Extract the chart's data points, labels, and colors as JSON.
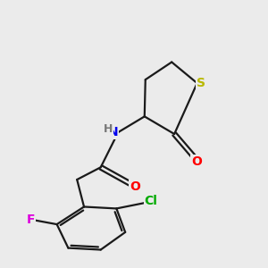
{
  "bg_color": "#ebebeb",
  "bond_color": "#1a1a1a",
  "atom_colors": {
    "S": "#b8b800",
    "N": "#0000ee",
    "O": "#ff0000",
    "Cl": "#00aa00",
    "F": "#dd00dd",
    "H": "#777777"
  },
  "font_size": 10,
  "lw": 1.6
}
